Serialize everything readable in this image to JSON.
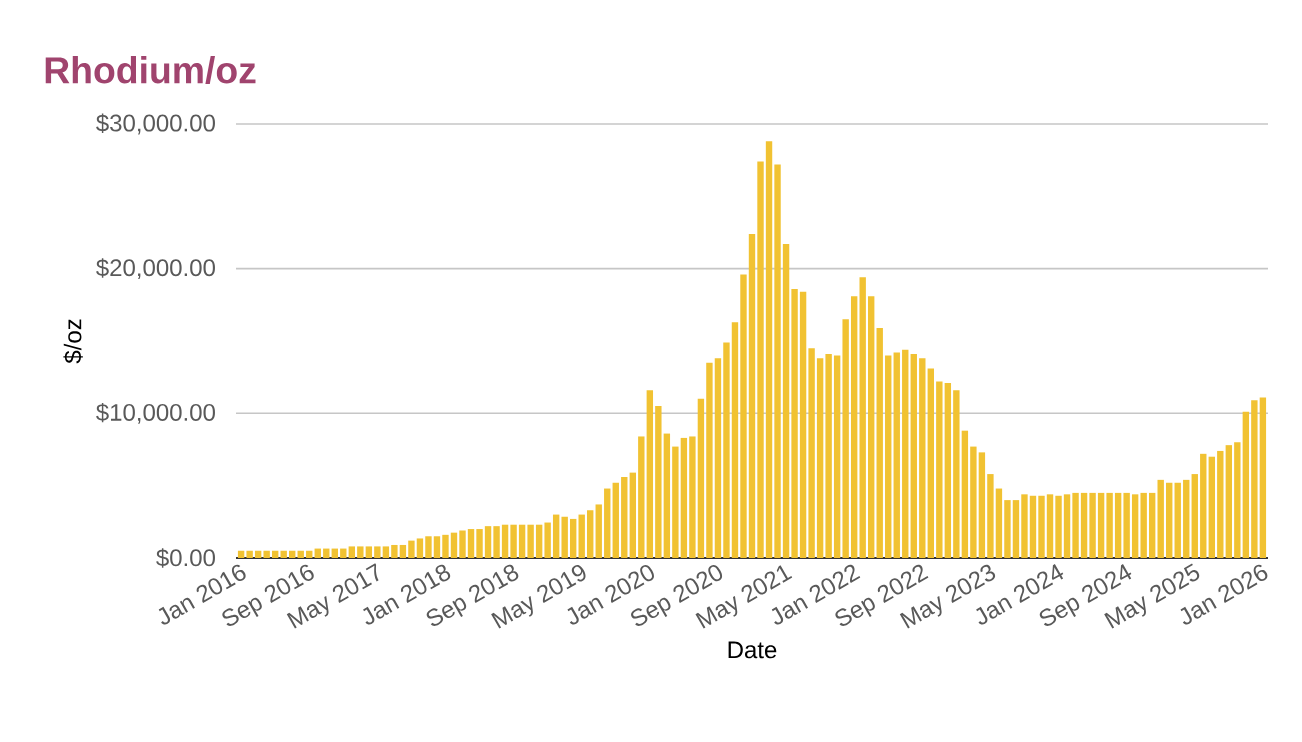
{
  "chart_data": {
    "type": "bar",
    "title": "Rhodium/oz",
    "xlabel": "Date",
    "ylabel": "$/oz",
    "color": "#f1c232",
    "grid": "y",
    "categories": [
      "Jan 2016",
      null,
      null,
      null,
      null,
      null,
      null,
      null,
      "Sep 2016",
      null,
      null,
      null,
      null,
      null,
      null,
      null,
      "May 2017",
      null,
      null,
      null,
      null,
      null,
      null,
      null,
      "Jan 2018",
      null,
      null,
      null,
      null,
      null,
      null,
      null,
      "Sep 2018",
      null,
      null,
      null,
      null,
      null,
      null,
      null,
      "May 2019",
      null,
      null,
      null,
      null,
      null,
      null,
      null,
      "Jan 2020",
      null,
      null,
      null,
      null,
      null,
      null,
      null,
      "Sep 2020",
      null,
      null,
      null,
      null,
      null,
      null,
      null,
      "May 2021",
      null,
      null,
      null,
      null,
      null,
      null,
      null,
      "Jan 2022",
      null,
      null,
      null,
      null,
      null,
      null,
      null,
      "Sep 2022",
      null,
      null,
      null,
      null,
      null,
      null,
      null,
      "May 2023",
      null,
      null,
      null,
      null,
      null,
      null,
      null,
      "Jan 2024",
      null,
      null,
      null,
      null,
      null,
      null,
      null,
      "Sep 2024",
      null,
      null,
      null,
      null,
      null,
      null,
      null,
      "May 2025",
      null,
      null,
      null,
      null,
      null,
      null,
      null,
      "Jan 2026"
    ],
    "values": [
      500,
      500,
      500,
      500,
      500,
      500,
      500,
      500,
      500,
      650,
      650,
      650,
      650,
      800,
      800,
      800,
      800,
      800,
      900,
      900,
      1200,
      1350,
      1500,
      1500,
      1600,
      1750,
      1900,
      2000,
      2000,
      2200,
      2200,
      2300,
      2300,
      2300,
      2300,
      2300,
      2450,
      3000,
      2850,
      2700,
      3000,
      3300,
      3700,
      4800,
      5200,
      5600,
      5900,
      8400,
      11600,
      10500,
      8600,
      7700,
      8300,
      8400,
      11000,
      13500,
      13800,
      14900,
      16300,
      19600,
      22400,
      27400,
      28800,
      27200,
      21700,
      18600,
      18400,
      14500,
      13800,
      14100,
      14000,
      16500,
      18100,
      19400,
      18100,
      15900,
      14000,
      14200,
      14400,
      14100,
      13800,
      13100,
      12200,
      12100,
      11600,
      8800,
      7700,
      7300,
      5800,
      4800,
      4000,
      4000,
      4400,
      4300,
      4300,
      4400,
      4300,
      4400,
      4500,
      4500,
      4500,
      4500,
      4500,
      4500,
      4500,
      4400,
      4500,
      4500,
      5400,
      5200,
      5200,
      5400,
      5800,
      7200,
      7000,
      7400,
      7800,
      8000,
      10100,
      10900,
      11100
    ],
    "ylim": [
      0,
      30000
    ],
    "yticks": [
      {
        "value": 0,
        "label": "$0.00"
      },
      {
        "value": 10000,
        "label": "$10,000.00"
      },
      {
        "value": 20000,
        "label": "$20,000.00"
      },
      {
        "value": 30000,
        "label": "$30,000.00"
      }
    ]
  }
}
